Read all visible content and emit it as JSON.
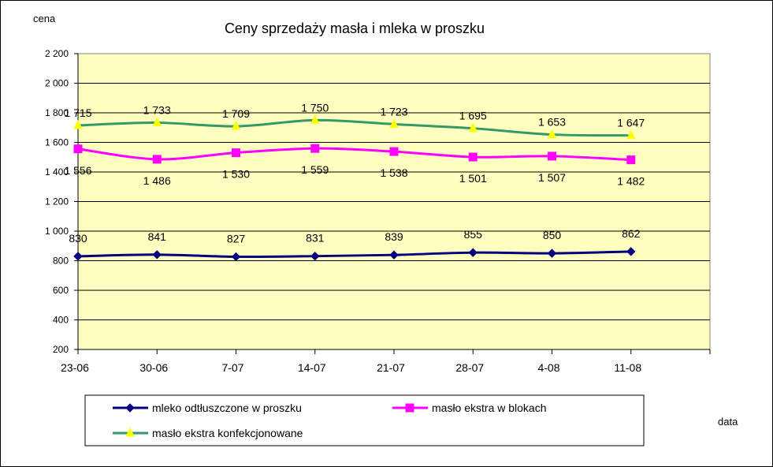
{
  "chart_data": {
    "type": "line",
    "title": "Ceny sprzedaży masła i mleka w proszku",
    "ylabel": "cena",
    "xlabel": "data",
    "ylim": [
      200,
      2200
    ],
    "yticks": [
      200,
      400,
      600,
      800,
      1000,
      1200,
      1400,
      1600,
      1800,
      2000,
      2200
    ],
    "ytick_labels": [
      "200",
      "400",
      "600",
      "800",
      "1 000",
      "1 200",
      "1 400",
      "1 600",
      "1 800",
      "2 000",
      "2 200"
    ],
    "categories": [
      "23-06",
      "30-06",
      "7-07",
      "14-07",
      "21-07",
      "28-07",
      "4-08",
      "11-08"
    ],
    "grid": true,
    "plot_background": "#FFFFC0",
    "legend_position": "bottom",
    "series": [
      {
        "name": "mleko odtłuszczone w proszku",
        "values": [
          830,
          841,
          827,
          831,
          839,
          855,
          850,
          862
        ],
        "labels": [
          "830",
          "841",
          "827",
          "831",
          "839",
          "855",
          "850",
          "862"
        ],
        "color": "#000080",
        "marker": "diamond"
      },
      {
        "name": "masło ekstra w blokach",
        "values": [
          1556,
          1486,
          1530,
          1559,
          1538,
          1501,
          1507,
          1482
        ],
        "labels": [
          "1 556",
          "1 486",
          "1 530",
          "1 559",
          "1 538",
          "1 501",
          "1 507",
          "1 482"
        ],
        "color": "#FF00FF",
        "marker": "square"
      },
      {
        "name": "masło ekstra konfekcjonowane",
        "values": [
          1715,
          1733,
          1709,
          1750,
          1723,
          1695,
          1653,
          1647
        ],
        "labels": [
          "1 715",
          "1 733",
          "1 709",
          "1 750",
          "1 723",
          "1 695",
          "1 653",
          "1 647"
        ],
        "color": "#339966",
        "marker": "triangle",
        "marker_color": "#FFFF00"
      }
    ]
  }
}
